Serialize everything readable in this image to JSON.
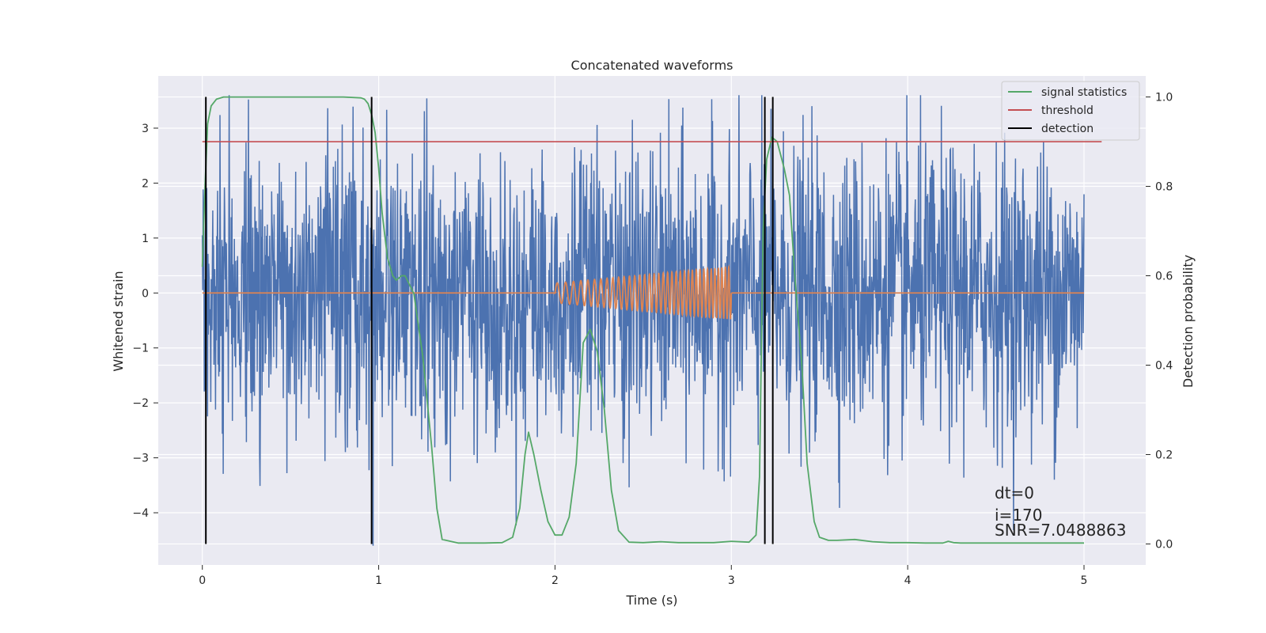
{
  "chart_data": {
    "type": "line",
    "title": "Concatenated waveforms",
    "xlabel": "Time (s)",
    "ylabel_left": "Whitened strain",
    "ylabel_right": "Detection probability",
    "xlim": [
      -0.25,
      5.35
    ],
    "ylim_left": [
      -4.95,
      3.95
    ],
    "ylim_right": [
      -0.047,
      1.047
    ],
    "xticks": [
      "0",
      "1",
      "2",
      "3",
      "4",
      "5"
    ],
    "yticks_left": [
      "3",
      "2",
      "1",
      "0",
      "−1",
      "−2",
      "−3",
      "−4"
    ],
    "yticks_right": [
      "1.0",
      "0.8",
      "0.6",
      "0.4",
      "0.2",
      "0.0"
    ],
    "grid": true,
    "legend_location": "upper right",
    "legend": [
      {
        "label": "signal statistics",
        "color": "#55a868"
      },
      {
        "label": "threshold",
        "color": "#c44e52"
      },
      {
        "label": "detection",
        "color": "#000000"
      }
    ],
    "colors": {
      "background": "#eaeaf2",
      "grid": "#ffffff",
      "strain": "#4c72b0",
      "template": "#dd8452",
      "statistic": "#55a868",
      "threshold": "#c44e52",
      "detection": "#000000"
    },
    "series": [
      {
        "kind": "whitened strain noise",
        "x_range": [
          0,
          5
        ],
        "typical_range": [
          -1.3,
          1.3
        ],
        "extreme_range": [
          -4.6,
          3.6
        ]
      },
      {
        "kind": "injected chirp template",
        "x_range": [
          0,
          5
        ],
        "chirp_interval": [
          2.0,
          3.0
        ],
        "amplitude_start": 0.18,
        "amplitude_end": 0.48,
        "cycles": 36
      },
      {
        "name": "signal statistics",
        "axis": "right",
        "x": [
          0.0,
          0.015,
          0.03,
          0.05,
          0.08,
          0.12,
          0.2,
          0.5,
          0.8,
          0.9,
          0.92,
          0.94,
          0.96,
          0.98,
          1.0,
          1.02,
          1.05,
          1.08,
          1.1,
          1.13,
          1.15,
          1.2,
          1.25,
          1.3,
          1.33,
          1.36,
          1.45,
          1.6,
          1.7,
          1.76,
          1.8,
          1.83,
          1.85,
          1.88,
          1.92,
          1.96,
          2.0,
          2.04,
          2.08,
          2.12,
          2.16,
          2.2,
          2.24,
          2.28,
          2.32,
          2.36,
          2.42,
          2.5,
          2.55,
          2.6,
          2.7,
          2.8,
          2.9,
          3.0,
          3.1,
          3.14,
          3.16,
          3.18,
          3.2,
          3.23,
          3.26,
          3.3,
          3.33,
          3.36,
          3.4,
          3.43,
          3.47,
          3.5,
          3.55,
          3.6,
          3.7,
          3.8,
          3.9,
          4.0,
          4.1,
          4.2,
          4.23,
          4.26,
          4.3,
          4.5,
          5.0
        ],
        "y": [
          0.62,
          0.8,
          0.94,
          0.98,
          0.995,
          1.0,
          1.0,
          1.0,
          1.0,
          0.998,
          0.995,
          0.985,
          0.96,
          0.92,
          0.84,
          0.74,
          0.64,
          0.6,
          0.59,
          0.6,
          0.6,
          0.56,
          0.42,
          0.22,
          0.08,
          0.01,
          0.002,
          0.002,
          0.003,
          0.015,
          0.08,
          0.2,
          0.25,
          0.2,
          0.12,
          0.05,
          0.02,
          0.02,
          0.06,
          0.18,
          0.45,
          0.48,
          0.43,
          0.3,
          0.12,
          0.03,
          0.004,
          0.003,
          0.004,
          0.005,
          0.003,
          0.003,
          0.003,
          0.006,
          0.004,
          0.02,
          0.15,
          0.7,
          0.86,
          0.91,
          0.9,
          0.84,
          0.78,
          0.6,
          0.4,
          0.18,
          0.05,
          0.015,
          0.008,
          0.008,
          0.01,
          0.005,
          0.003,
          0.003,
          0.002,
          0.002,
          0.006,
          0.003,
          0.002,
          0.002,
          0.002
        ]
      },
      {
        "name": "threshold",
        "axis": "right",
        "x": [
          0.0,
          5.1
        ],
        "y": [
          0.9,
          0.9
        ]
      }
    ],
    "detections_x": [
      0.02,
      0.96,
      3.19,
      3.235
    ],
    "annotations": [
      "dt=0",
      "i=170",
      "SNR=7.0488863"
    ]
  }
}
